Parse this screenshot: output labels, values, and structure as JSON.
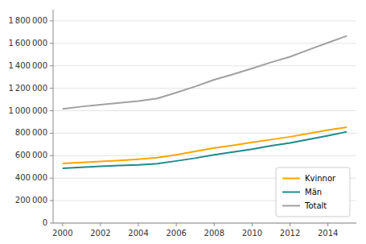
{
  "chart_data": {
    "type": "line",
    "x": [
      2000,
      2001,
      2002,
      2003,
      2004,
      2005,
      2006,
      2007,
      2008,
      2009,
      2010,
      2011,
      2012,
      2013,
      2014,
      2015
    ],
    "series": [
      {
        "name": "Kvinnor",
        "color": "#FFA500",
        "values": [
          530000,
          540000,
          548000,
          557000,
          568000,
          582000,
          608000,
          638000,
          668000,
          692000,
          718000,
          743000,
          768000,
          798000,
          828000,
          853000
        ]
      },
      {
        "name": "Män",
        "color": "#1E8B8B",
        "values": [
          487000,
          497000,
          506000,
          513000,
          518000,
          528000,
          553000,
          578000,
          608000,
          633000,
          658000,
          688000,
          713000,
          746000,
          778000,
          813000
        ]
      },
      {
        "name": "Totalt",
        "color": "#A0A0A0",
        "values": [
          1017000,
          1037000,
          1054000,
          1070000,
          1086000,
          1110000,
          1161000,
          1216000,
          1276000,
          1325000,
          1376000,
          1431000,
          1481000,
          1544000,
          1606000,
          1666000
        ]
      }
    ],
    "xlim": [
      1999.5,
      2015.5
    ],
    "xticks": [
      2000,
      2002,
      2004,
      2006,
      2008,
      2010,
      2012,
      2014
    ],
    "ylim": [
      0,
      1900000
    ],
    "yticks": [
      0,
      {
        "value": 200000,
        "label": "200 000"
      },
      {
        "value": 400000,
        "label": "400 000"
      },
      {
        "value": 600000,
        "label": "600 000"
      },
      {
        "value": 800000,
        "label": "800 000"
      },
      {
        "value": 1000000,
        "label": "1 000 000"
      },
      {
        "value": 1200000,
        "label": "1 200 000"
      },
      {
        "value": 1400000,
        "label": "1 400 000"
      },
      {
        "value": 1600000,
        "label": "1 600 000"
      },
      {
        "value": 1800000,
        "label": "1 800 000"
      }
    ],
    "grid": true,
    "legend": "lower right"
  }
}
